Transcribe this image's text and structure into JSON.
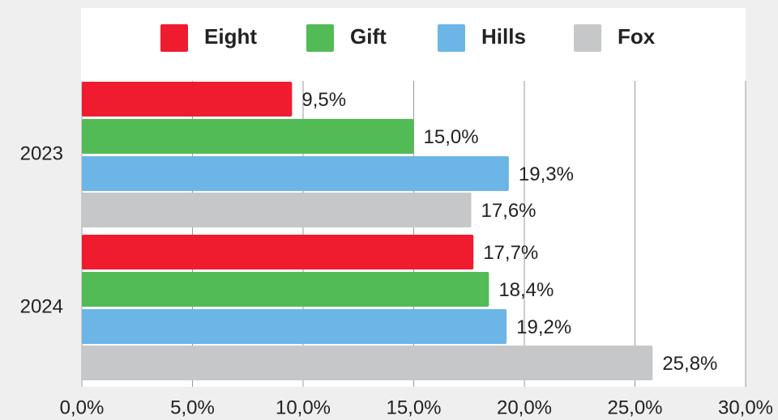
{
  "chart_data": {
    "type": "bar",
    "orientation": "horizontal",
    "categories": [
      "2023",
      "2024"
    ],
    "series": [
      {
        "name": "Eight",
        "color": "#ee1c2e",
        "values": [
          9.5,
          17.7
        ],
        "value_labels": [
          "9,5%",
          "17,7%"
        ]
      },
      {
        "name": "Gift",
        "color": "#52bb55",
        "values": [
          15.0,
          18.4
        ],
        "value_labels": [
          "15,0%",
          "18,4%"
        ]
      },
      {
        "name": "Hills",
        "color": "#6bb6e6",
        "values": [
          19.3,
          19.2
        ],
        "value_labels": [
          "19,3%",
          "19,2%"
        ]
      },
      {
        "name": "Fox",
        "color": "#c6c7c9",
        "values": [
          17.6,
          25.8
        ],
        "value_labels": [
          "17,6%",
          "25,8%"
        ]
      }
    ],
    "xlim": [
      0,
      30
    ],
    "xticks": [
      {
        "value": 0,
        "label": "0,0%"
      },
      {
        "value": 5,
        "label": "5,0%"
      },
      {
        "value": 10,
        "label": "10,0%"
      },
      {
        "value": 15,
        "label": "15,0%"
      },
      {
        "value": 20,
        "label": "20,0%"
      },
      {
        "value": 25,
        "label": "25,0%"
      },
      {
        "value": 30,
        "label": "30,0%"
      }
    ],
    "grid": true,
    "legend": "top"
  }
}
